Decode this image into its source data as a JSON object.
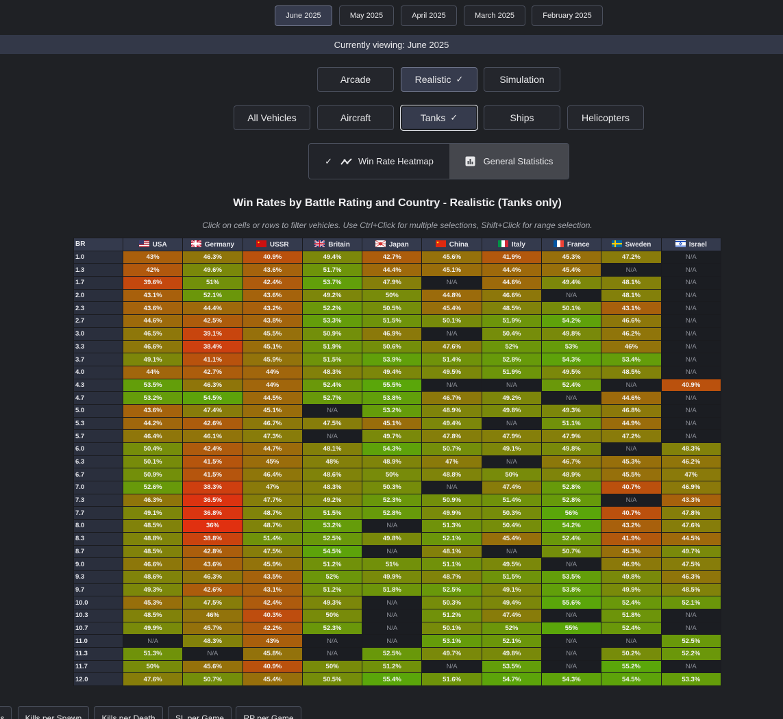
{
  "months": [
    {
      "label": "June 2025",
      "active": true
    },
    {
      "label": "May 2025",
      "active": false
    },
    {
      "label": "April 2025",
      "active": false
    },
    {
      "label": "March 2025",
      "active": false
    },
    {
      "label": "February 2025",
      "active": false
    }
  ],
  "banner": {
    "text": "Currently viewing: June 2025"
  },
  "modes": [
    {
      "label": "Arcade",
      "active": false
    },
    {
      "label": "Realistic",
      "active": true
    },
    {
      "label": "Simulation",
      "active": false
    }
  ],
  "vehicle_types": [
    {
      "label": "All Vehicles",
      "active": false
    },
    {
      "label": "Aircraft",
      "active": false
    },
    {
      "label": "Tanks",
      "active": true
    },
    {
      "label": "Ships",
      "active": false
    },
    {
      "label": "Helicopters",
      "active": false
    }
  ],
  "view_toggle": {
    "heatmap_label": "Win Rate Heatmap",
    "stats_label": "General Statistics",
    "active": "heatmap",
    "check_icon": "check-icon",
    "heatmap_icon": "trend-line-icon",
    "stats_icon": "bar-chart-icon"
  },
  "heatmap": {
    "title": "Win Rates by Battle Rating and Country - Realistic (Tanks only)",
    "subtitle": "Click on cells or rows to filter vehicles. Use Ctrl+Click for multiple selections, Shift+Click for range selection.",
    "br_header": "BR",
    "na_label": "N/A",
    "countries": [
      "USA",
      "Germany",
      "USSR",
      "Britain",
      "Japan",
      "China",
      "Italy",
      "France",
      "Sweden",
      "Israel"
    ],
    "flag_icons": [
      "usa-flag-icon",
      "germany-flag-icon",
      "ussr-flag-icon",
      "britain-flag-icon",
      "japan-flag-icon",
      "china-flag-icon",
      "italy-flag-icon",
      "france-flag-icon",
      "sweden-flag-icon",
      "israel-flag-icon"
    ],
    "color_scale": {
      "low": "#e03010",
      "mid": "#8a7a0a",
      "high": "#5aa60a",
      "na": "#1b1d22"
    },
    "rows": [
      {
        "br": "1.0",
        "values": [
          "43%",
          "46.3%",
          "40.9%",
          "49.4%",
          "42.7%",
          "45.6%",
          "41.9%",
          "45.3%",
          "47.2%",
          "N/A"
        ]
      },
      {
        "br": "1.3",
        "values": [
          "42%",
          "49.6%",
          "43.6%",
          "51.7%",
          "44.4%",
          "45.1%",
          "44.4%",
          "45.4%",
          "N/A",
          "N/A"
        ]
      },
      {
        "br": "1.7",
        "values": [
          "39.6%",
          "51%",
          "42.4%",
          "53.7%",
          "47.9%",
          "N/A",
          "44.6%",
          "49.4%",
          "48.1%",
          "N/A"
        ]
      },
      {
        "br": "2.0",
        "values": [
          "43.1%",
          "52.1%",
          "43.6%",
          "49.2%",
          "50%",
          "44.8%",
          "46.6%",
          "N/A",
          "48.1%",
          "N/A"
        ]
      },
      {
        "br": "2.3",
        "values": [
          "43.6%",
          "44.4%",
          "43.2%",
          "52.2%",
          "50.5%",
          "45.4%",
          "48.5%",
          "50.1%",
          "43.1%",
          "N/A"
        ]
      },
      {
        "br": "2.7",
        "values": [
          "44.6%",
          "42.5%",
          "43.8%",
          "53.3%",
          "51.5%",
          "50.1%",
          "51.9%",
          "54.2%",
          "46.6%",
          "N/A"
        ]
      },
      {
        "br": "3.0",
        "values": [
          "46.5%",
          "39.1%",
          "45.5%",
          "50.9%",
          "46.9%",
          "N/A",
          "50.4%",
          "49.8%",
          "46.2%",
          "N/A"
        ]
      },
      {
        "br": "3.3",
        "values": [
          "46.6%",
          "38.4%",
          "45.1%",
          "51.9%",
          "50.6%",
          "47.6%",
          "52%",
          "53%",
          "46%",
          "N/A"
        ]
      },
      {
        "br": "3.7",
        "values": [
          "49.1%",
          "41.1%",
          "45.9%",
          "51.5%",
          "53.9%",
          "51.4%",
          "52.8%",
          "54.3%",
          "53.4%",
          "N/A"
        ]
      },
      {
        "br": "4.0",
        "values": [
          "44%",
          "42.7%",
          "44%",
          "48.3%",
          "49.4%",
          "49.5%",
          "51.9%",
          "49.5%",
          "48.5%",
          "N/A"
        ]
      },
      {
        "br": "4.3",
        "values": [
          "53.5%",
          "46.3%",
          "44%",
          "52.4%",
          "55.5%",
          "N/A",
          "N/A",
          "52.4%",
          "N/A",
          "40.9%"
        ]
      },
      {
        "br": "4.7",
        "values": [
          "53.2%",
          "54.5%",
          "44.5%",
          "52.7%",
          "53.8%",
          "46.7%",
          "49.2%",
          "N/A",
          "44.6%",
          "N/A"
        ]
      },
      {
        "br": "5.0",
        "values": [
          "43.6%",
          "47.4%",
          "45.1%",
          "N/A",
          "53.2%",
          "48.9%",
          "49.8%",
          "49.3%",
          "46.8%",
          "N/A"
        ]
      },
      {
        "br": "5.3",
        "values": [
          "44.2%",
          "42.6%",
          "46.7%",
          "47.5%",
          "45.1%",
          "49.4%",
          "N/A",
          "51.1%",
          "44.9%",
          "N/A"
        ]
      },
      {
        "br": "5.7",
        "values": [
          "46.4%",
          "46.1%",
          "47.3%",
          "N/A",
          "49.7%",
          "47.8%",
          "47.9%",
          "47.9%",
          "47.2%",
          "N/A"
        ]
      },
      {
        "br": "6.0",
        "values": [
          "50.4%",
          "42.4%",
          "44.7%",
          "48.1%",
          "54.3%",
          "50.7%",
          "49.1%",
          "49.8%",
          "N/A",
          "48.3%"
        ]
      },
      {
        "br": "6.3",
        "values": [
          "50.1%",
          "41.5%",
          "45%",
          "48%",
          "48.9%",
          "47%",
          "N/A",
          "46.7%",
          "45.3%",
          "46.2%"
        ]
      },
      {
        "br": "6.7",
        "values": [
          "50.9%",
          "41.5%",
          "46.4%",
          "48.6%",
          "50%",
          "48.8%",
          "50%",
          "48.9%",
          "45.5%",
          "47%"
        ]
      },
      {
        "br": "7.0",
        "values": [
          "52.6%",
          "38.3%",
          "47%",
          "48.3%",
          "50.3%",
          "N/A",
          "47.4%",
          "52.8%",
          "40.7%",
          "46.9%"
        ]
      },
      {
        "br": "7.3",
        "values": [
          "46.3%",
          "36.5%",
          "47.7%",
          "49.2%",
          "52.3%",
          "50.9%",
          "51.4%",
          "52.8%",
          "N/A",
          "43.3%"
        ]
      },
      {
        "br": "7.7",
        "values": [
          "49.1%",
          "36.8%",
          "48.7%",
          "51.5%",
          "52.8%",
          "49.9%",
          "50.3%",
          "56%",
          "40.7%",
          "47.8%"
        ]
      },
      {
        "br": "8.0",
        "values": [
          "48.5%",
          "36%",
          "48.7%",
          "53.2%",
          "N/A",
          "51.3%",
          "50.4%",
          "54.2%",
          "43.2%",
          "47.6%"
        ]
      },
      {
        "br": "8.3",
        "values": [
          "48.8%",
          "38.8%",
          "51.4%",
          "52.5%",
          "49.8%",
          "52.1%",
          "45.4%",
          "52.4%",
          "41.9%",
          "44.5%"
        ]
      },
      {
        "br": "8.7",
        "values": [
          "48.5%",
          "42.8%",
          "47.5%",
          "54.5%",
          "N/A",
          "48.1%",
          "N/A",
          "50.7%",
          "45.3%",
          "49.7%"
        ]
      },
      {
        "br": "9.0",
        "values": [
          "46.6%",
          "43.6%",
          "45.9%",
          "51.2%",
          "51%",
          "51.1%",
          "49.5%",
          "N/A",
          "46.9%",
          "47.5%"
        ]
      },
      {
        "br": "9.3",
        "values": [
          "48.6%",
          "46.3%",
          "43.5%",
          "52%",
          "49.9%",
          "48.7%",
          "51.5%",
          "53.5%",
          "49.8%",
          "46.3%"
        ]
      },
      {
        "br": "9.7",
        "values": [
          "49.3%",
          "42.6%",
          "43.1%",
          "51.2%",
          "51.8%",
          "52.5%",
          "49.1%",
          "53.8%",
          "49.9%",
          "48.5%"
        ]
      },
      {
        "br": "10.0",
        "values": [
          "45.3%",
          "47.5%",
          "42.4%",
          "49.3%",
          "N/A",
          "50.3%",
          "49.4%",
          "55.6%",
          "52.4%",
          "52.1%"
        ]
      },
      {
        "br": "10.3",
        "values": [
          "48.5%",
          "46%",
          "40.3%",
          "50%",
          "N/A",
          "51.2%",
          "47.4%",
          "N/A",
          "51.8%",
          "N/A"
        ]
      },
      {
        "br": "10.7",
        "values": [
          "49.9%",
          "45.7%",
          "42.2%",
          "52.3%",
          "N/A",
          "50.1%",
          "52%",
          "55%",
          "52.4%",
          "N/A"
        ]
      },
      {
        "br": "11.0",
        "values": [
          "N/A",
          "48.3%",
          "43%",
          "N/A",
          "N/A",
          "53.1%",
          "52.1%",
          "N/A",
          "N/A",
          "52.5%"
        ]
      },
      {
        "br": "11.3",
        "values": [
          "51.3%",
          "N/A",
          "45.8%",
          "N/A",
          "52.5%",
          "49.7%",
          "49.8%",
          "N/A",
          "50.2%",
          "52.2%"
        ]
      },
      {
        "br": "11.7",
        "values": [
          "50%",
          "45.6%",
          "40.9%",
          "50%",
          "51.2%",
          "N/A",
          "53.5%",
          "N/A",
          "55.2%",
          "N/A"
        ]
      },
      {
        "br": "12.0",
        "values": [
          "47.6%",
          "50.7%",
          "45.4%",
          "50.5%",
          "55.4%",
          "51.6%",
          "54.7%",
          "54.3%",
          "54.5%",
          "53.3%"
        ]
      }
    ]
  },
  "bottom_tabs": [
    {
      "label": "s"
    },
    {
      "label": "Kills per Spawn"
    },
    {
      "label": "Kills per Death"
    },
    {
      "label": "SL per Game"
    },
    {
      "label": "RP per Game"
    }
  ]
}
